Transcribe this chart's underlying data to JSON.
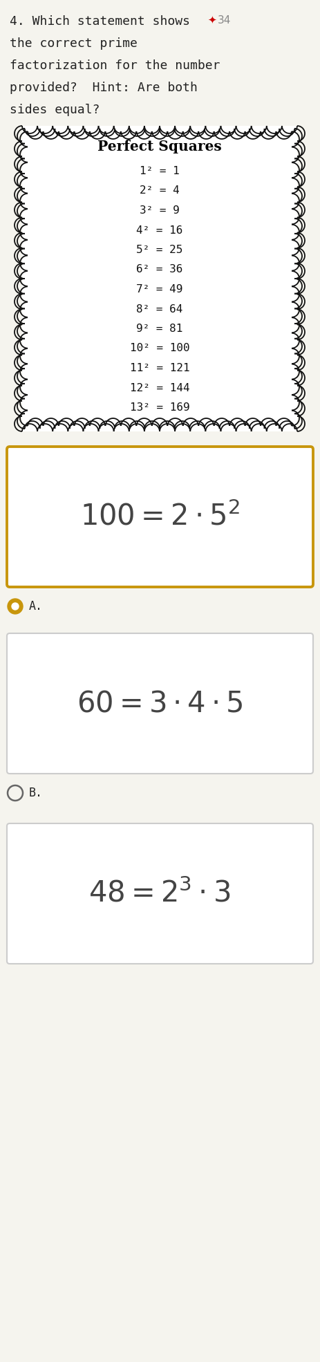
{
  "bg_color": "#f5f4ee",
  "question_line1": "4. Which statement shows",
  "question_line2": "the correct prime",
  "question_line3": "factorization for the number",
  "question_line4": "provided?  Hint: Are both",
  "question_line5": "sides equal?",
  "star_color": "#cc0000",
  "star_label": "34",
  "perfect_squares_title": "Perfect Squares",
  "perfect_squares": [
    "1² = 1",
    "2² = 4",
    "3² = 9",
    "4² = 16",
    "5² = 25",
    "6² = 36",
    "7² = 49",
    "8² = 64",
    "9² = 81",
    "10² = 100",
    "11² = 121",
    "12² = 144",
    "13² = 169"
  ],
  "box_A_border_color": "#c8960c",
  "box_B_border_color": "#cccccc",
  "box_C_border_color": "#cccccc",
  "radio_A_color": "#c8960c",
  "radio_B_color": "#888888",
  "formula_A": "$100 = 2 \\cdot 5^2$",
  "formula_B": "$60 = 3 \\cdot 4 \\cdot 5$",
  "formula_C": "$48 = 2^3 \\cdot 3$",
  "formula_color": "#444444",
  "text_color": "#222222"
}
